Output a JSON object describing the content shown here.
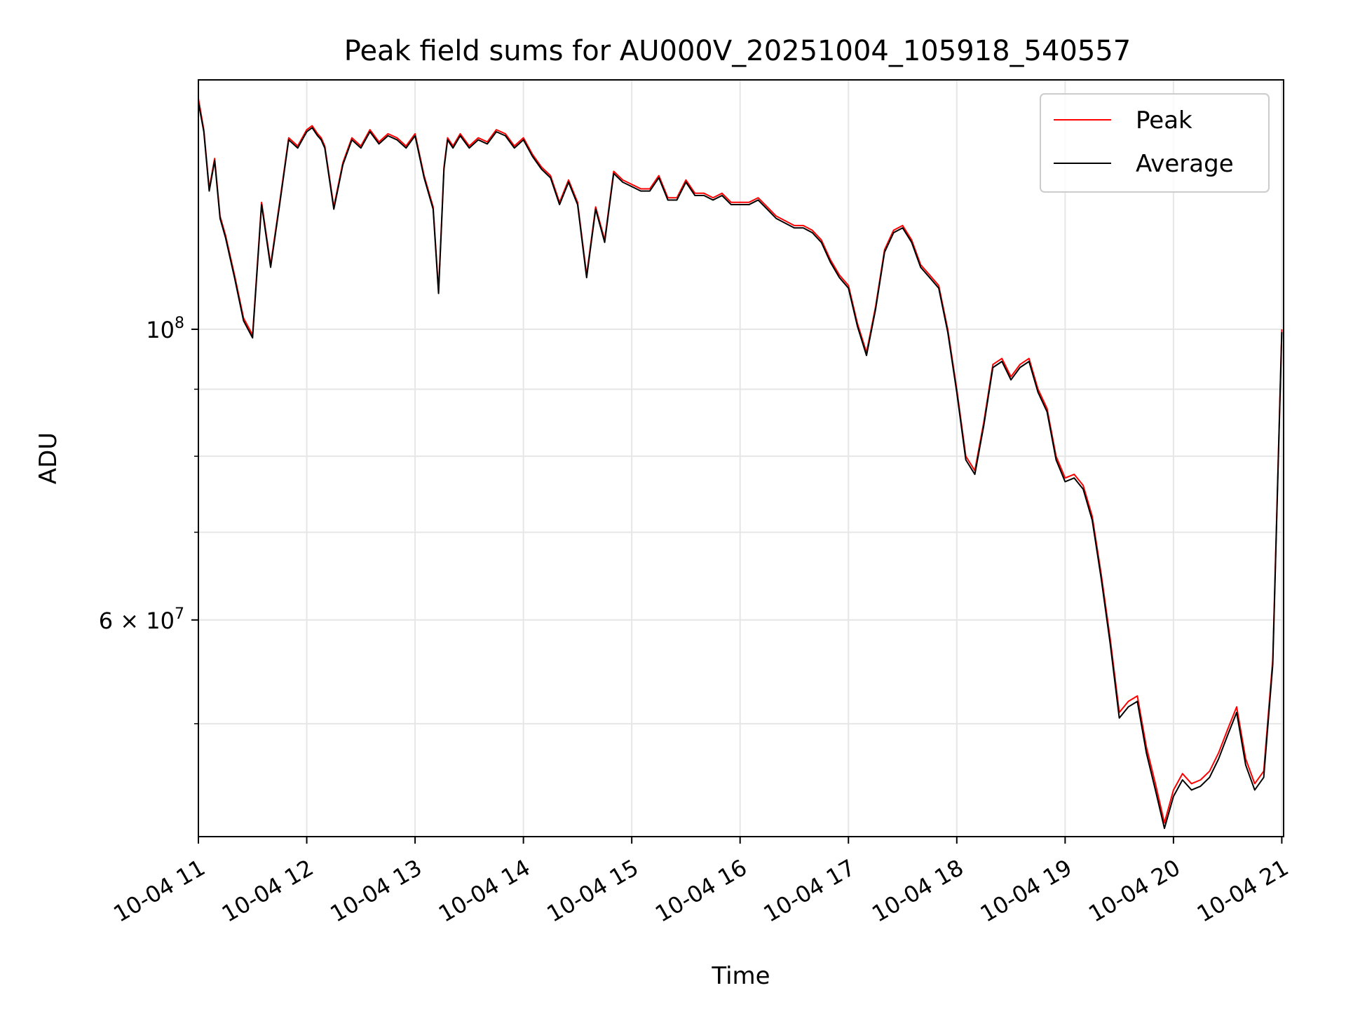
{
  "chart_data": {
    "type": "line",
    "title": "Peak field sums for AU000V_20251004_105918_540557",
    "xlabel": "Time",
    "ylabel": "ADU",
    "yscale": "log",
    "ylim": [
      41000000,
      155000000
    ],
    "xlim": [
      "2025-10-04 11:00",
      "2025-10-04 21:01"
    ],
    "x_ticks": [
      "10-04 11",
      "10-04 12",
      "10-04 13",
      "10-04 14",
      "10-04 15",
      "10-04 16",
      "10-04 17",
      "10-04 18",
      "10-04 19",
      "10-04 20",
      "10-04 21"
    ],
    "y_ticks": [
      {
        "value": 100000000,
        "label_base": "10",
        "label_exp": "8"
      },
      {
        "value": 60000000,
        "label_base": "6 × 10",
        "label_exp": "7"
      }
    ],
    "y_minor_gridlines": [
      50000000,
      70000000,
      80000000,
      90000000
    ],
    "grid": true,
    "legend_position": "upper-right",
    "x": [
      "11:00",
      "11:03",
      "11:06",
      "11:09",
      "11:12",
      "11:15",
      "11:20",
      "11:25",
      "11:30",
      "11:35",
      "11:40",
      "11:45",
      "11:50",
      "11:55",
      "12:00",
      "12:03",
      "12:06",
      "12:08",
      "12:10",
      "12:15",
      "12:20",
      "12:25",
      "12:30",
      "12:35",
      "12:40",
      "12:45",
      "12:50",
      "12:55",
      "13:00",
      "13:05",
      "13:10",
      "13:13",
      "13:16",
      "13:18",
      "13:21",
      "13:25",
      "13:30",
      "13:35",
      "13:40",
      "13:45",
      "13:50",
      "13:55",
      "14:00",
      "14:05",
      "14:10",
      "14:15",
      "14:20",
      "14:25",
      "14:30",
      "14:35",
      "14:40",
      "14:45",
      "14:50",
      "14:55",
      "15:00",
      "15:05",
      "15:10",
      "15:15",
      "15:20",
      "15:25",
      "15:30",
      "15:35",
      "15:40",
      "15:45",
      "15:50",
      "15:55",
      "16:00",
      "16:05",
      "16:10",
      "16:15",
      "16:20",
      "16:25",
      "16:30",
      "16:35",
      "16:40",
      "16:45",
      "16:50",
      "16:55",
      "17:00",
      "17:05",
      "17:10",
      "17:15",
      "17:20",
      "17:25",
      "17:30",
      "17:35",
      "17:40",
      "17:45",
      "17:50",
      "17:55",
      "18:00",
      "18:05",
      "18:10",
      "18:15",
      "18:20",
      "18:25",
      "18:30",
      "18:35",
      "18:40",
      "18:45",
      "18:50",
      "18:55",
      "19:00",
      "19:05",
      "19:10",
      "19:15",
      "19:20",
      "19:25",
      "19:30",
      "19:35",
      "19:40",
      "19:45",
      "19:50",
      "19:55",
      "20:00",
      "20:05",
      "20:10",
      "20:15",
      "20:20",
      "20:25",
      "20:30",
      "20:35",
      "20:40",
      "20:45",
      "20:50",
      "20:55",
      "21:00"
    ],
    "series": [
      {
        "name": "Peak",
        "color": "#ff0000",
        "values": [
          150000000,
          142000000,
          128000000,
          135000000,
          122000000,
          118000000,
          110000000,
          102000000,
          99000000,
          125000000,
          112000000,
          125000000,
          140000000,
          138000000,
          142000000,
          143000000,
          141000000,
          140000000,
          138000000,
          124000000,
          134000000,
          140000000,
          138000000,
          142000000,
          139000000,
          141000000,
          140000000,
          138000000,
          141000000,
          131000000,
          124000000,
          107000000,
          133000000,
          140000000,
          138000000,
          141000000,
          138000000,
          140000000,
          139000000,
          142000000,
          141000000,
          138000000,
          140000000,
          136000000,
          133000000,
          131000000,
          125000000,
          130000000,
          125000000,
          110000000,
          124000000,
          117000000,
          132000000,
          130000000,
          129000000,
          128000000,
          128000000,
          131000000,
          126000000,
          126000000,
          130000000,
          127000000,
          127000000,
          126000000,
          127000000,
          125000000,
          125000000,
          125000000,
          126000000,
          124000000,
          122000000,
          121000000,
          120000000,
          120000000,
          119000000,
          117000000,
          113000000,
          110000000,
          108000000,
          101000000,
          96000000,
          104000000,
          115000000,
          119000000,
          120000000,
          117000000,
          112000000,
          110000000,
          108000000,
          100000000,
          90000000,
          80000000,
          78000000,
          85000000,
          94000000,
          95000000,
          92000000,
          94000000,
          95000000,
          90000000,
          87000000,
          80000000,
          77000000,
          77500000,
          76000000,
          72000000,
          65000000,
          58000000,
          51000000,
          52000000,
          52500000,
          48000000,
          45000000,
          42000000,
          44500000,
          45800000,
          45000000,
          45300000,
          46000000,
          47500000,
          49500000,
          51500000,
          47000000,
          45000000,
          46000000,
          56000000,
          100000000
        ]
      },
      {
        "name": "Average",
        "color": "#000000",
        "values": [
          149000000,
          141500000,
          127500000,
          134500000,
          121500000,
          117500000,
          109500000,
          101500000,
          98500000,
          124500000,
          111500000,
          124500000,
          139500000,
          137500000,
          141500000,
          142500000,
          140500000,
          139500000,
          137500000,
          123500000,
          133500000,
          139500000,
          137500000,
          141500000,
          138500000,
          140500000,
          139500000,
          137500000,
          140500000,
          130500000,
          123500000,
          106500000,
          132500000,
          139500000,
          137500000,
          140500000,
          137500000,
          139500000,
          138500000,
          141500000,
          140500000,
          137500000,
          139500000,
          135500000,
          132500000,
          130500000,
          124500000,
          129500000,
          124500000,
          109500000,
          123500000,
          116500000,
          131500000,
          129500000,
          128500000,
          127500000,
          127500000,
          130500000,
          125500000,
          125500000,
          129500000,
          126500000,
          126500000,
          125500000,
          126500000,
          124500000,
          124500000,
          124500000,
          125500000,
          123500000,
          121500000,
          120500000,
          119500000,
          119500000,
          118500000,
          116500000,
          112500000,
          109500000,
          107500000,
          100500000,
          95500000,
          103500000,
          114500000,
          118500000,
          119500000,
          116500000,
          111500000,
          109500000,
          107500000,
          99500000,
          89500000,
          79500000,
          77500000,
          84500000,
          93500000,
          94500000,
          91500000,
          93500000,
          94500000,
          89500000,
          86500000,
          79500000,
          76500000,
          77000000,
          75500000,
          71500000,
          64500000,
          57500000,
          50500000,
          51500000,
          52000000,
          47500000,
          44500000,
          41600000,
          44000000,
          45300000,
          44500000,
          44800000,
          45500000,
          47000000,
          49000000,
          51000000,
          46500000,
          44500000,
          45500000,
          55500000,
          99500000
        ]
      }
    ]
  }
}
